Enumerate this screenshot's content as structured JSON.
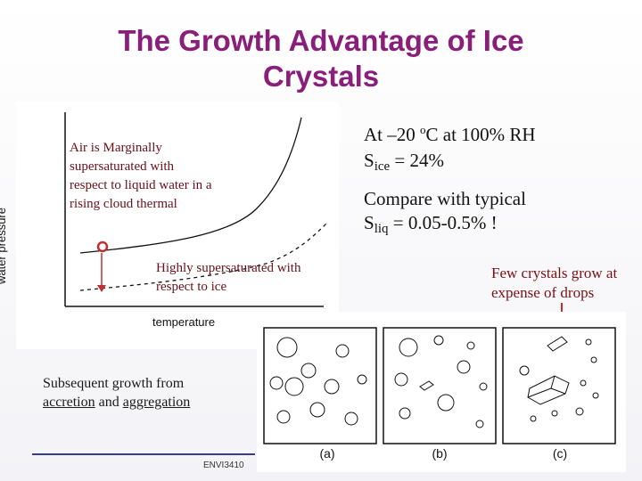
{
  "title": {
    "line1": "The Growth Advantage of Ice",
    "line2": "Crystals"
  },
  "plot": {
    "ylabel": "water pressure",
    "xlabel": "temperature",
    "note_liquid": "Air is Marginally supersaturated with respect to liquid water in a rising cloud thermal",
    "note_ice": "Highly supersaturated with respect to ice"
  },
  "right": {
    "line1_prefix": "At –20 ",
    "deg_mark": "o",
    "line1_suffix": "C at 100% RH",
    "s_ice_prefix": "S",
    "s_ice_sub": "ice",
    "s_ice_suffix": " = 24%",
    "compare": "Compare with typical",
    "s_liq_prefix": "S",
    "s_liq_sub": "liq",
    "s_liq_suffix": " = 0.05-0.5% !"
  },
  "few_crystals": "Few crystals grow at expense of drops",
  "subsequent": {
    "line1": "Subsequent growth from",
    "accretion": "accretion",
    "and": " and ",
    "aggregation": "aggregation"
  },
  "drops": {
    "labels": [
      "(a)",
      "(b)",
      "(c)"
    ]
  },
  "footer": "ENVI3410"
}
